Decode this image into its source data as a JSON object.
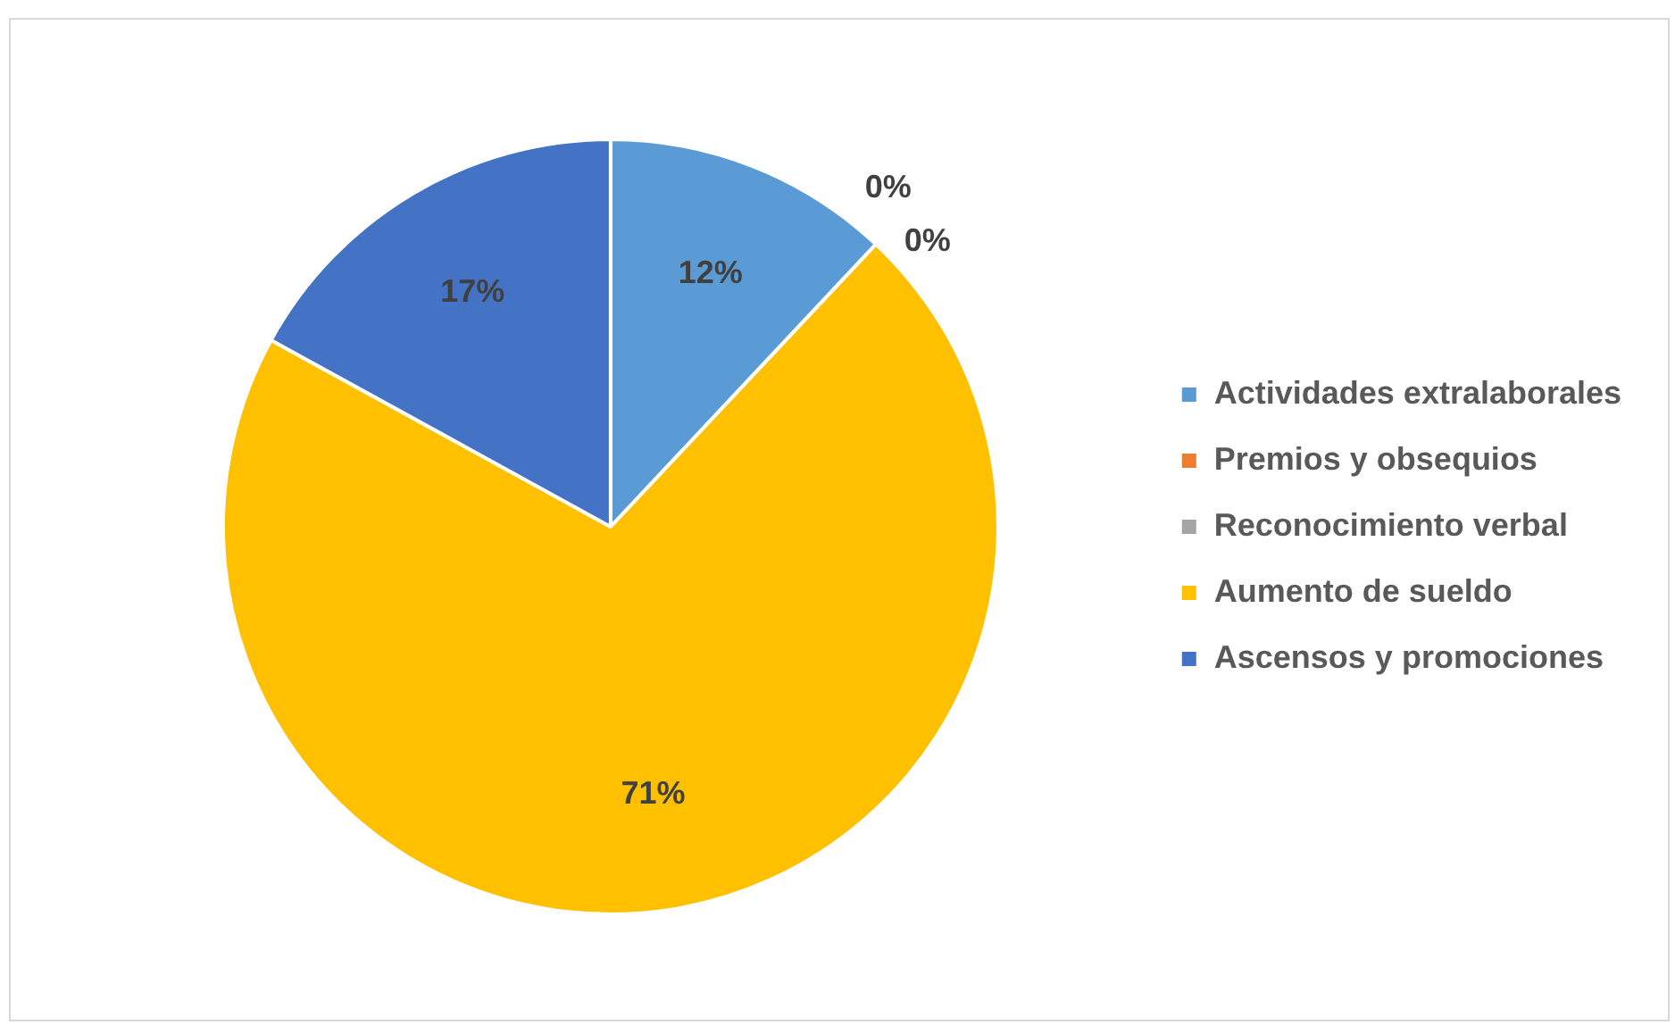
{
  "chart_data": {
    "type": "pie",
    "categories": [
      "Actividades extralaborales",
      "Premios y obsequios",
      "Reconocimiento verbal",
      "Aumento de sueldo",
      "Ascensos y promociones"
    ],
    "values": [
      12,
      0,
      0,
      71,
      17
    ],
    "colors": [
      "#5b9bd5",
      "#ed7d31",
      "#a5a5a5",
      "#ffc000",
      "#4472c4"
    ],
    "value_labels": [
      "12%",
      "0%",
      "0%",
      "71%",
      "17%"
    ],
    "legend": "right"
  }
}
